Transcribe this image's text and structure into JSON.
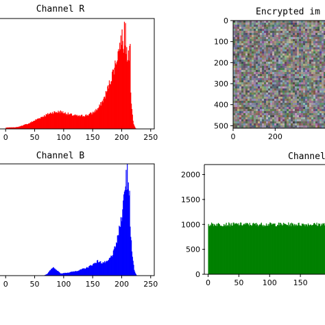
{
  "chart_data": [
    {
      "id": "channel-r",
      "type": "histogram",
      "title": "Channel R",
      "color": "#ff0000",
      "xlim": [
        -5,
        255
      ],
      "xticks": [
        0,
        50,
        100,
        150,
        200,
        250
      ],
      "ylim": [
        0,
        2200
      ],
      "yticks": [],
      "profile": [
        [
          0,
          25
        ],
        [
          20,
          35
        ],
        [
          40,
          110
        ],
        [
          60,
          230
        ],
        [
          80,
          330
        ],
        [
          95,
          345
        ],
        [
          110,
          290
        ],
        [
          125,
          255
        ],
        [
          140,
          275
        ],
        [
          150,
          320
        ],
        [
          160,
          420
        ],
        [
          170,
          620
        ],
        [
          180,
          950
        ],
        [
          190,
          1350
        ],
        [
          196,
          1650
        ],
        [
          200,
          1850
        ],
        [
          203,
          1650
        ],
        [
          205,
          1700
        ],
        [
          208,
          1650
        ],
        [
          210,
          1450
        ],
        [
          213,
          1700
        ],
        [
          216,
          600
        ],
        [
          220,
          100
        ],
        [
          224,
          10
        ],
        [
          230,
          0
        ],
        [
          255,
          0
        ]
      ],
      "spikes": [
        [
          198,
          1750
        ],
        [
          201,
          1900
        ],
        [
          204,
          2070
        ],
        [
          206,
          2050
        ],
        [
          208,
          1800
        ],
        [
          212,
          1500
        ],
        [
          214,
          1770
        ]
      ]
    },
    {
      "id": "encrypted-image",
      "type": "image",
      "title": "Encrypted im",
      "colormap": "noise",
      "xlim": [
        0,
        512
      ],
      "ylim": [
        512,
        0
      ],
      "xticks": [
        0,
        200
      ],
      "yticks": [
        0,
        100,
        200,
        300,
        400,
        500
      ]
    },
    {
      "id": "channel-b",
      "type": "histogram",
      "title": "Channel B",
      "color": "#0000ff",
      "xlim": [
        -5,
        255
      ],
      "xticks": [
        0,
        50,
        100,
        150,
        200,
        250
      ],
      "ylim": [
        0,
        2400
      ],
      "yticks": [],
      "profile": [
        [
          0,
          0
        ],
        [
          65,
          0
        ],
        [
          72,
          40
        ],
        [
          78,
          140
        ],
        [
          82,
          170
        ],
        [
          88,
          110
        ],
        [
          95,
          45
        ],
        [
          110,
          70
        ],
        [
          125,
          110
        ],
        [
          140,
          170
        ],
        [
          150,
          240
        ],
        [
          158,
          310
        ],
        [
          165,
          280
        ],
        [
          175,
          290
        ],
        [
          185,
          470
        ],
        [
          192,
          750
        ],
        [
          198,
          1150
        ],
        [
          203,
          1600
        ],
        [
          206,
          1850
        ],
        [
          209,
          2000
        ],
        [
          212,
          1800
        ],
        [
          215,
          1000
        ],
        [
          218,
          420
        ],
        [
          222,
          90
        ],
        [
          226,
          0
        ],
        [
          255,
          0
        ]
      ],
      "spikes": [
        [
          204,
          1950
        ],
        [
          207,
          2250
        ],
        [
          209,
          2450
        ],
        [
          211,
          2150
        ],
        [
          213,
          1900
        ]
      ]
    },
    {
      "id": "channel-g",
      "type": "histogram",
      "title": "Channel G",
      "color": "#008000",
      "xlim": [
        -5,
        190
      ],
      "xticks": [
        0,
        50,
        100,
        150
      ],
      "ylim": [
        0,
        2200
      ],
      "yticks": [
        0,
        500,
        1000,
        1500,
        2000
      ],
      "profile": [
        [
          0,
          1000
        ],
        [
          255,
          1000
        ]
      ],
      "noise": 40
    }
  ]
}
